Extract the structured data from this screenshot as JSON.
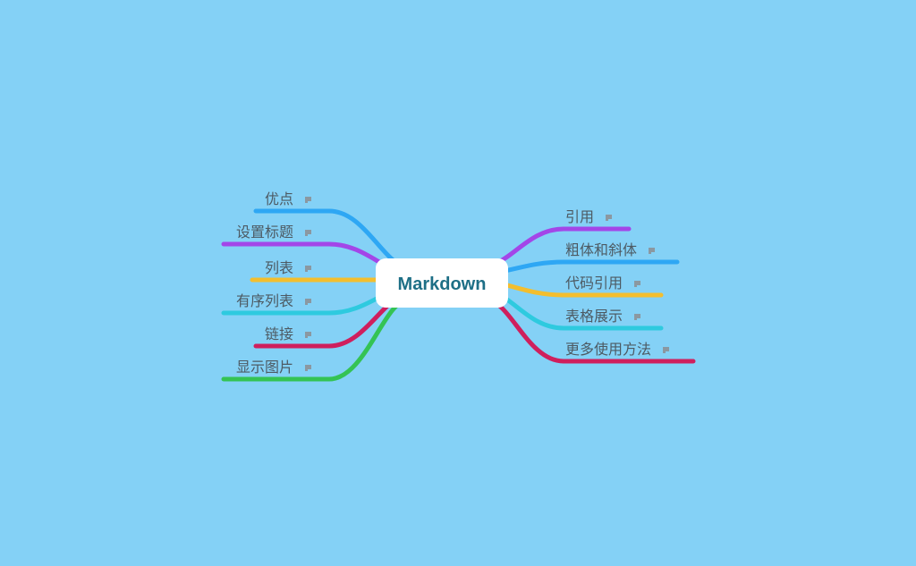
{
  "mindmap": {
    "central": {
      "label": "Markdown"
    },
    "left_branches": [
      {
        "label": "优点",
        "color": "#2ea7f4",
        "has_note": true
      },
      {
        "label": "设置标题",
        "color": "#a346e8",
        "has_note": true
      },
      {
        "label": "列表",
        "color": "#f3be2e",
        "has_note": true
      },
      {
        "label": "有序列表",
        "color": "#2ecadf",
        "has_note": true
      },
      {
        "label": "链接",
        "color": "#cf1f5d",
        "has_note": true
      },
      {
        "label": "显示图片",
        "color": "#34c354",
        "has_note": true
      }
    ],
    "right_branches": [
      {
        "label": "引用",
        "color": "#a346e8",
        "has_note": true
      },
      {
        "label": "粗体和斜体",
        "color": "#2ea7f4",
        "has_note": true
      },
      {
        "label": "代码引用",
        "color": "#f3be2e",
        "has_note": true
      },
      {
        "label": "表格展示",
        "color": "#2ecadf",
        "has_note": true
      },
      {
        "label": "更多使用方法",
        "color": "#cf1f5d",
        "has_note": true
      }
    ],
    "note_icon": "note-icon"
  }
}
